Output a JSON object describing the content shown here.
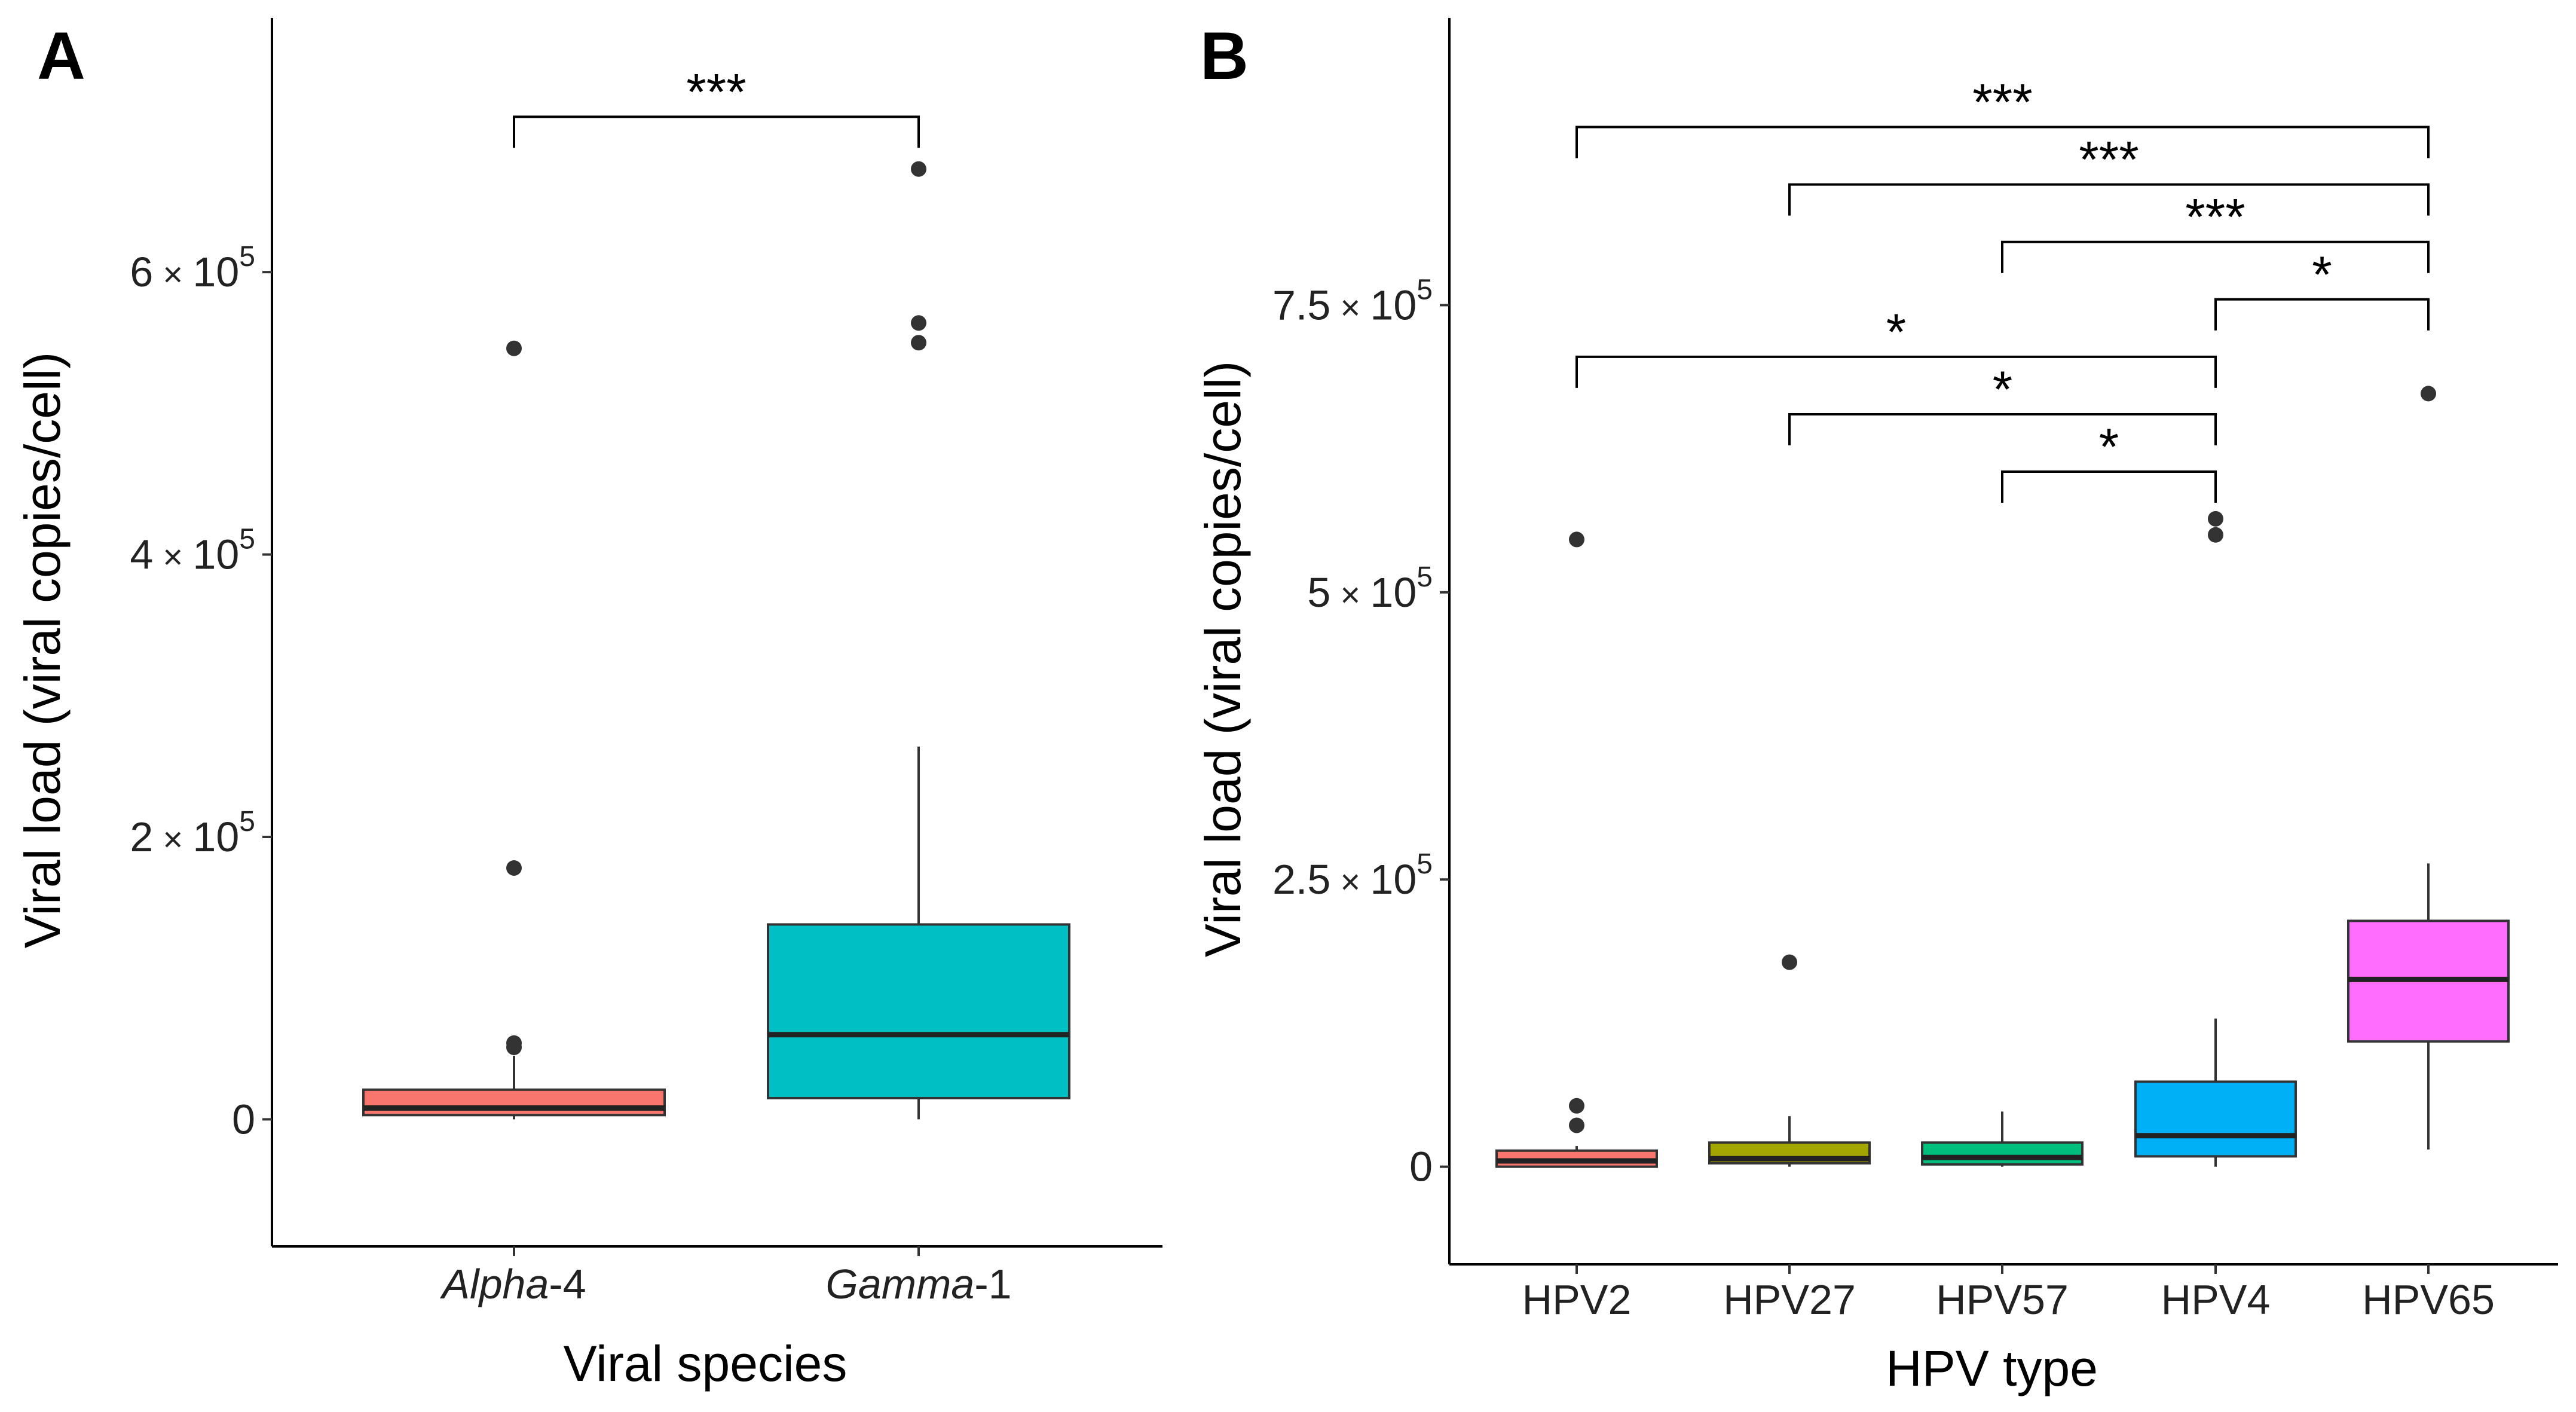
{
  "chart_data": [
    {
      "type": "box",
      "panel": "A",
      "xlabel": "Viral species",
      "ylabel": "Viral load (viral copies/cell)",
      "ylim": [
        -90000,
        780000
      ],
      "yticks": [
        {
          "value": 0,
          "label": "0"
        },
        {
          "value": 200000,
          "label_mantissa": "2",
          "label_times": "×",
          "label_base": "10",
          "label_exp": "5"
        },
        {
          "value": 400000,
          "label_mantissa": "4",
          "label_times": "×",
          "label_base": "10",
          "label_exp": "5"
        },
        {
          "value": 600000,
          "label_mantissa": "6",
          "label_times": "×",
          "label_base": "10",
          "label_exp": "5"
        }
      ],
      "categories": [
        {
          "name_italic": "Alpha",
          "name_suffix": "-4",
          "color": "#F8766D",
          "q1": 3000,
          "median": 8000,
          "q3": 21000,
          "whisker_low": 0,
          "whisker_high": 45000,
          "outliers": [
            51000,
            54000,
            178000,
            546000
          ]
        },
        {
          "name_italic": "Gamma",
          "name_suffix": "-1",
          "color": "#00BFC4",
          "q1": 15000,
          "median": 60000,
          "q3": 138000,
          "whisker_low": 0,
          "whisker_high": 264000,
          "outliers": [
            550000,
            564000,
            673000
          ]
        }
      ],
      "comparisons": [
        {
          "from": 0,
          "to": 1,
          "label": "***",
          "y": 710000
        }
      ]
    },
    {
      "type": "box",
      "panel": "B",
      "xlabel": "HPV type",
      "ylabel": "Viral load (viral copies/cell)",
      "ylim": [
        -85000,
        1000000
      ],
      "yticks": [
        {
          "value": 0,
          "label": "0"
        },
        {
          "value": 250000,
          "label_mantissa": "2.5",
          "label_times": "×",
          "label_base": "10",
          "label_exp": "5"
        },
        {
          "value": 500000,
          "label_mantissa": "5",
          "label_times": "×",
          "label_base": "10",
          "label_exp": "5"
        },
        {
          "value": 750000,
          "label_mantissa": "7.5",
          "label_times": "×",
          "label_base": "10",
          "label_exp": "5"
        }
      ],
      "categories": [
        {
          "name": "HPV2",
          "color": "#F8766D",
          "q1": 0,
          "median": 5000,
          "q3": 14000,
          "whisker_low": 0,
          "whisker_high": 18000,
          "outliers": [
            36000,
            53000,
            546000
          ]
        },
        {
          "name": "HPV27",
          "color": "#A3A500",
          "q1": 3000,
          "median": 7000,
          "q3": 21000,
          "whisker_low": 0,
          "whisker_high": 44000,
          "outliers": [
            178000
          ]
        },
        {
          "name": "HPV57",
          "color": "#00BF7D",
          "q1": 2000,
          "median": 8000,
          "q3": 21000,
          "whisker_low": 0,
          "whisker_high": 48000,
          "outliers": []
        },
        {
          "name": "HPV4",
          "color": "#00B0F6",
          "q1": 9000,
          "median": 27000,
          "q3": 74000,
          "whisker_low": 0,
          "whisker_high": 129000,
          "outliers": [
            550000,
            564000
          ]
        },
        {
          "name": "HPV65",
          "color": "#FF6DFF",
          "q1": 109000,
          "median": 163000,
          "q3": 214000,
          "whisker_low": 15000,
          "whisker_high": 264000,
          "outliers": [
            673000
          ]
        }
      ],
      "comparisons": [
        {
          "from": 0,
          "to": 4,
          "label": "***",
          "y": 905000
        },
        {
          "from": 1,
          "to": 4,
          "label": "***",
          "y": 855000
        },
        {
          "from": 2,
          "to": 4,
          "label": "***",
          "y": 805000
        },
        {
          "from": 3,
          "to": 4,
          "label": "*",
          "y": 755000
        },
        {
          "from": 0,
          "to": 3,
          "label": "*",
          "y": 705000
        },
        {
          "from": 1,
          "to": 3,
          "label": "*",
          "y": 655000
        },
        {
          "from": 2,
          "to": 3,
          "label": "*",
          "y": 605000
        }
      ]
    }
  ]
}
